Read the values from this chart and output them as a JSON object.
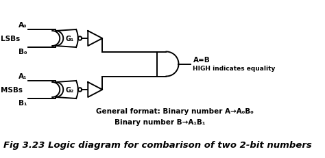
{
  "bg_color": "#ffffff",
  "title": "Fig 3.23 Logic diagram for combarison of two 2-bit numbers",
  "title_fontsize": 9.5,
  "title_fontweight": "bold",
  "general_format_line1": "General format: Binary number A→A₀B₀",
  "general_format_line2": "Binary number B→A₁B₁",
  "output_label1": "A=B",
  "output_label2": "HIGH indicates equality",
  "lsbs_label": "LSBs",
  "msbs_label": "MSBs",
  "A0_label": "A₀",
  "B0_label": "B₀",
  "A1_label": "A₁",
  "B1_label": "B₁",
  "G1_label": "G₁",
  "G2_label": "G₂",
  "line_color": "#000000",
  "line_width": 1.4,
  "font_color": "#000000",
  "xlim": [
    0,
    9.48
  ],
  "ylim": [
    0,
    4.64
  ],
  "y_top": 3.5,
  "y_bot": 2.0,
  "y_and": 2.75
}
